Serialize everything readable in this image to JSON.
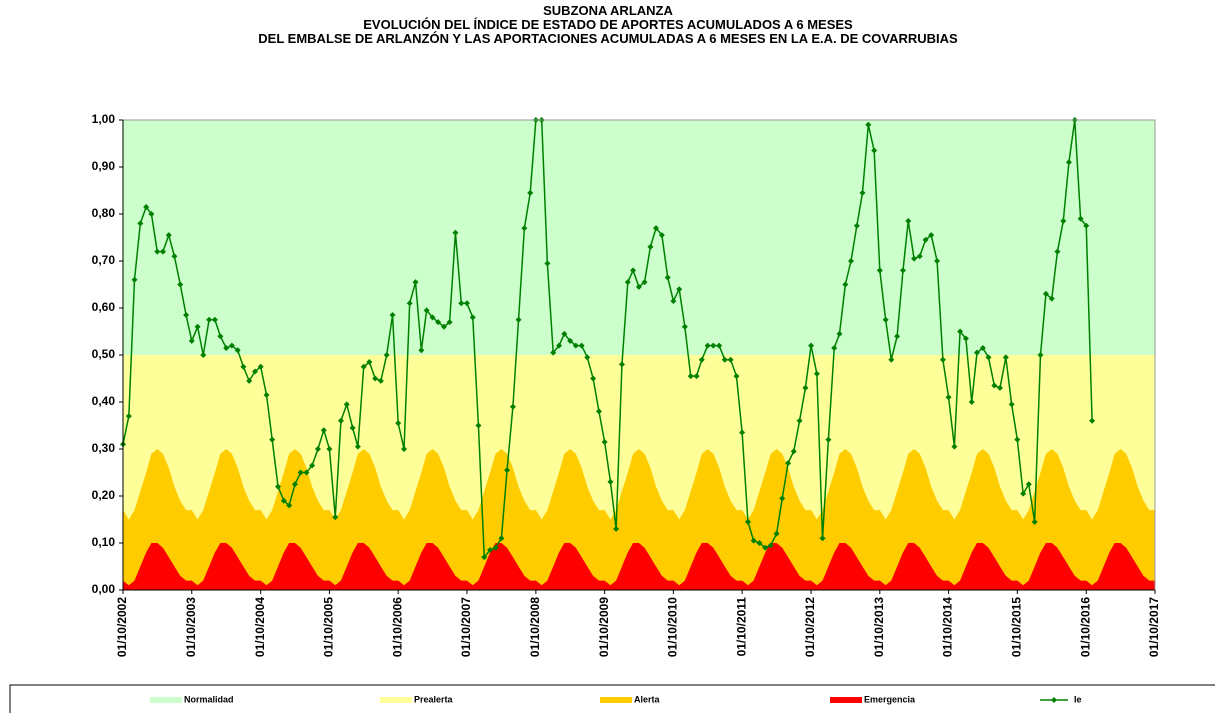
{
  "chart_data": {
    "type": "line",
    "title": [
      "SUBZONA ARLANZA",
      "EVOLUCIÓN DEL ÍNDICE DE ESTADO DE APORTES ACUMULADOS A 6 MESES",
      "DEL EMBALSE DE ARLANZÓN Y LAS APORTACIONES ACUMULADAS A 6 MESES EN LA E.A. DE COVARRUBIAS"
    ],
    "x": [
      "2002-10-01",
      "2002-11-01",
      "2002-12-01",
      "2003-01-01",
      "2003-02-01",
      "2003-03-01",
      "2003-04-01",
      "2003-05-01",
      "2003-06-01",
      "2003-07-01",
      "2003-08-01",
      "2003-09-01",
      "2003-10-01",
      "2003-11-01",
      "2003-12-01",
      "2004-01-01",
      "2004-02-01",
      "2004-03-01",
      "2004-04-01",
      "2004-05-01",
      "2004-06-01",
      "2004-07-01",
      "2004-08-01",
      "2004-09-01",
      "2004-10-01",
      "2004-11-01",
      "2004-12-01",
      "2005-01-01",
      "2005-02-01",
      "2005-03-01",
      "2005-04-01",
      "2005-05-01",
      "2005-06-01",
      "2005-07-01",
      "2005-08-01",
      "2005-09-01",
      "2005-10-01",
      "2005-11-01",
      "2005-12-01",
      "2006-01-01",
      "2006-02-01",
      "2006-03-01",
      "2006-04-01",
      "2006-05-01",
      "2006-06-01",
      "2006-07-01",
      "2006-08-01",
      "2006-09-01",
      "2006-10-01",
      "2006-11-01",
      "2006-12-01",
      "2007-01-01",
      "2007-02-01",
      "2007-03-01",
      "2007-04-01",
      "2007-05-01",
      "2007-06-01",
      "2007-07-01",
      "2007-08-01",
      "2007-09-01",
      "2007-10-01",
      "2007-11-01",
      "2007-12-01",
      "2008-01-01",
      "2008-02-01",
      "2008-03-01",
      "2008-04-01",
      "2008-05-01",
      "2008-06-01",
      "2008-07-01",
      "2008-08-01",
      "2008-09-01",
      "2008-10-01",
      "2008-11-01",
      "2008-12-01",
      "2009-01-01",
      "2009-02-01",
      "2009-03-01",
      "2009-04-01",
      "2009-05-01",
      "2009-06-01",
      "2009-07-01",
      "2009-08-01",
      "2009-09-01",
      "2009-10-01",
      "2009-11-01",
      "2009-12-01",
      "2010-01-01",
      "2010-02-01",
      "2010-03-01",
      "2010-04-01",
      "2010-05-01",
      "2010-06-01",
      "2010-07-01",
      "2010-08-01",
      "2010-09-01",
      "2010-10-01",
      "2010-11-01",
      "2010-12-01",
      "2011-01-01",
      "2011-02-01",
      "2011-03-01",
      "2011-04-01",
      "2011-05-01",
      "2011-06-01",
      "2011-07-01",
      "2011-08-01",
      "2011-09-01",
      "2011-10-01",
      "2011-11-01",
      "2011-12-01",
      "2012-01-01",
      "2012-02-01",
      "2012-03-01",
      "2012-04-01",
      "2012-05-01",
      "2012-06-01",
      "2012-07-01",
      "2012-08-01",
      "2012-09-01",
      "2012-10-01",
      "2012-11-01",
      "2012-12-01",
      "2013-01-01",
      "2013-02-01",
      "2013-03-01",
      "2013-04-01",
      "2013-05-01",
      "2013-06-01",
      "2013-07-01",
      "2013-08-01",
      "2013-09-01",
      "2013-10-01",
      "2013-11-01",
      "2013-12-01",
      "2014-01-01",
      "2014-02-01",
      "2014-03-01",
      "2014-04-01",
      "2014-05-01",
      "2014-06-01",
      "2014-07-01",
      "2014-08-01",
      "2014-09-01",
      "2014-10-01",
      "2014-11-01",
      "2014-12-01",
      "2015-01-01",
      "2015-02-01",
      "2015-03-01",
      "2015-04-01",
      "2015-05-01",
      "2015-06-01",
      "2015-07-01",
      "2015-08-01",
      "2015-09-01",
      "2015-10-01",
      "2015-11-01",
      "2015-12-01",
      "2016-01-01",
      "2016-02-01",
      "2016-03-01",
      "2016-04-01",
      "2016-05-01",
      "2016-06-01",
      "2016-07-01",
      "2016-08-01",
      "2016-09-01",
      "2016-10-01",
      "2016-11-01",
      "2016-12-01",
      "2017-01-01",
      "2017-02-01",
      "2017-03-01",
      "2017-04-01",
      "2017-05-01",
      "2017-06-01",
      "2017-07-01",
      "2017-08-01",
      "2017-09-01",
      "2017-10-01"
    ],
    "xlim": [
      "2002-10-01",
      "2017-10-01"
    ],
    "xticks": [
      {
        "value": "2002-10-01",
        "label": "01/10/2002"
      },
      {
        "value": "2003-10-01",
        "label": "01/10/2003"
      },
      {
        "value": "2004-10-01",
        "label": "01/10/2004"
      },
      {
        "value": "2005-10-01",
        "label": "01/10/2005"
      },
      {
        "value": "2006-10-01",
        "label": "01/10/2006"
      },
      {
        "value": "2007-10-01",
        "label": "01/10/2007"
      },
      {
        "value": "2008-10-01",
        "label": "01/10/2008"
      },
      {
        "value": "2009-10-01",
        "label": "01/10/2009"
      },
      {
        "value": "2010-10-01",
        "label": "01/10/2010"
      },
      {
        "value": "2011-10-01",
        "label": "01/10/2011"
      },
      {
        "value": "2012-10-01",
        "label": "01/10/2012"
      },
      {
        "value": "2013-10-01",
        "label": "01/10/2013"
      },
      {
        "value": "2014-10-01",
        "label": "01/10/2014"
      },
      {
        "value": "2015-10-01",
        "label": "01/10/2015"
      },
      {
        "value": "2016-10-01",
        "label": "01/10/2016"
      },
      {
        "value": "2017-10-01",
        "label": "01/10/2017"
      }
    ],
    "ylim": [
      0,
      1
    ],
    "yticks": [
      {
        "value": 0,
        "label": "0,00"
      },
      {
        "value": 0.1,
        "label": "0,10"
      },
      {
        "value": 0.2,
        "label": "0,20"
      },
      {
        "value": 0.3,
        "label": "0,30"
      },
      {
        "value": 0.4,
        "label": "0,40"
      },
      {
        "value": 0.5,
        "label": "0,50"
      },
      {
        "value": 0.6,
        "label": "0,60"
      },
      {
        "value": 0.7,
        "label": "0,70"
      },
      {
        "value": 0.8,
        "label": "0,80"
      },
      {
        "value": 0.9,
        "label": "0,90"
      },
      {
        "value": 1,
        "label": "1,00"
      }
    ],
    "legend": "bottom",
    "series": [
      {
        "name": "Normalidad",
        "color": "#ccffcc",
        "style": "band",
        "level": 1
      },
      {
        "name": "Prealerta",
        "color": "#ffff99",
        "style": "band",
        "level": 0.5
      },
      {
        "name": "Alerta",
        "color": "#ffcc00",
        "style": "area",
        "values": [
          0.17,
          0.15,
          0.17,
          0.21,
          0.25,
          0.29,
          0.3,
          0.29,
          0.26,
          0.22,
          0.19,
          0.17,
          0.17,
          0.15,
          0.17,
          0.21,
          0.25,
          0.29,
          0.3,
          0.29,
          0.26,
          0.22,
          0.19,
          0.17,
          0.17,
          0.15,
          0.17,
          0.21,
          0.25,
          0.29,
          0.3,
          0.29,
          0.26,
          0.22,
          0.19,
          0.17,
          0.17,
          0.15,
          0.17,
          0.21,
          0.25,
          0.29,
          0.3,
          0.29,
          0.26,
          0.22,
          0.19,
          0.17,
          0.17,
          0.15,
          0.17,
          0.21,
          0.25,
          0.29,
          0.3,
          0.29,
          0.26,
          0.22,
          0.19,
          0.17,
          0.17,
          0.15,
          0.17,
          0.21,
          0.25,
          0.29,
          0.3,
          0.29,
          0.26,
          0.22,
          0.19,
          0.17,
          0.17,
          0.15,
          0.17,
          0.21,
          0.25,
          0.29,
          0.3,
          0.29,
          0.26,
          0.22,
          0.19,
          0.17,
          0.17,
          0.15,
          0.17,
          0.21,
          0.25,
          0.29,
          0.3,
          0.29,
          0.26,
          0.22,
          0.19,
          0.17,
          0.17,
          0.15,
          0.17,
          0.21,
          0.25,
          0.29,
          0.3,
          0.29,
          0.26,
          0.22,
          0.19,
          0.17,
          0.17,
          0.15,
          0.17,
          0.21,
          0.25,
          0.29,
          0.3,
          0.29,
          0.26,
          0.22,
          0.19,
          0.17,
          0.17,
          0.15,
          0.17,
          0.21,
          0.25,
          0.29,
          0.3,
          0.29,
          0.26,
          0.22,
          0.19,
          0.17,
          0.17,
          0.15,
          0.17,
          0.21,
          0.25,
          0.29,
          0.3,
          0.29,
          0.26,
          0.22,
          0.19,
          0.17,
          0.17,
          0.15,
          0.17,
          0.21,
          0.25,
          0.29,
          0.3,
          0.29,
          0.26,
          0.22,
          0.19,
          0.17,
          0.17,
          0.15,
          0.17,
          0.21,
          0.25,
          0.29,
          0.3,
          0.29,
          0.26,
          0.22,
          0.19,
          0.17,
          0.17,
          0.15,
          0.17,
          0.21,
          0.25,
          0.29,
          0.3,
          0.29,
          0.26,
          0.22,
          0.19,
          0.17,
          0.17
        ]
      },
      {
        "name": "Emergencia",
        "color": "#ff0000",
        "style": "area",
        "values": [
          0.02,
          0.01,
          0.02,
          0.05,
          0.08,
          0.1,
          0.1,
          0.09,
          0.07,
          0.05,
          0.03,
          0.02,
          0.02,
          0.01,
          0.02,
          0.05,
          0.08,
          0.1,
          0.1,
          0.09,
          0.07,
          0.05,
          0.03,
          0.02,
          0.02,
          0.01,
          0.02,
          0.05,
          0.08,
          0.1,
          0.1,
          0.09,
          0.07,
          0.05,
          0.03,
          0.02,
          0.02,
          0.01,
          0.02,
          0.05,
          0.08,
          0.1,
          0.1,
          0.09,
          0.07,
          0.05,
          0.03,
          0.02,
          0.02,
          0.01,
          0.02,
          0.05,
          0.08,
          0.1,
          0.1,
          0.09,
          0.07,
          0.05,
          0.03,
          0.02,
          0.02,
          0.01,
          0.02,
          0.05,
          0.08,
          0.1,
          0.1,
          0.09,
          0.07,
          0.05,
          0.03,
          0.02,
          0.02,
          0.01,
          0.02,
          0.05,
          0.08,
          0.1,
          0.1,
          0.09,
          0.07,
          0.05,
          0.03,
          0.02,
          0.02,
          0.01,
          0.02,
          0.05,
          0.08,
          0.1,
          0.1,
          0.09,
          0.07,
          0.05,
          0.03,
          0.02,
          0.02,
          0.01,
          0.02,
          0.05,
          0.08,
          0.1,
          0.1,
          0.09,
          0.07,
          0.05,
          0.03,
          0.02,
          0.02,
          0.01,
          0.02,
          0.05,
          0.08,
          0.1,
          0.1,
          0.09,
          0.07,
          0.05,
          0.03,
          0.02,
          0.02,
          0.01,
          0.02,
          0.05,
          0.08,
          0.1,
          0.1,
          0.09,
          0.07,
          0.05,
          0.03,
          0.02,
          0.02,
          0.01,
          0.02,
          0.05,
          0.08,
          0.1,
          0.1,
          0.09,
          0.07,
          0.05,
          0.03,
          0.02,
          0.02,
          0.01,
          0.02,
          0.05,
          0.08,
          0.1,
          0.1,
          0.09,
          0.07,
          0.05,
          0.03,
          0.02,
          0.02,
          0.01,
          0.02,
          0.05,
          0.08,
          0.1,
          0.1,
          0.09,
          0.07,
          0.05,
          0.03,
          0.02,
          0.02,
          0.01,
          0.02,
          0.05,
          0.08,
          0.1,
          0.1,
          0.09,
          0.07,
          0.05,
          0.03,
          0.02,
          0.02
        ]
      },
      {
        "name": "Ie",
        "color": "#008000",
        "style": "line",
        "values": [
          0.31,
          0.37,
          0.66,
          0.78,
          0.815,
          0.8,
          0.72,
          0.72,
          0.755,
          0.71,
          0.65,
          0.585,
          0.53,
          0.56,
          0.5,
          0.575,
          0.575,
          0.54,
          0.515,
          0.52,
          0.51,
          0.475,
          0.445,
          0.465,
          0.475,
          0.415,
          0.32,
          0.22,
          0.19,
          0.18,
          0.225,
          0.25,
          0.25,
          0.265,
          0.3,
          0.34,
          0.3,
          0.155,
          0.36,
          0.395,
          0.345,
          0.305,
          0.475,
          0.485,
          0.45,
          0.445,
          0.5,
          0.585,
          0.355,
          0.3,
          0.61,
          0.655,
          0.51,
          0.595,
          0.58,
          0.57,
          0.56,
          0.57,
          0.76,
          0.61,
          0.61,
          0.58,
          0.35,
          0.07,
          0.085,
          0.09,
          0.11,
          0.255,
          0.39,
          0.575,
          0.77,
          0.845,
          1.0,
          1.0,
          0.695,
          0.505,
          0.52,
          0.545,
          0.53,
          0.52,
          0.52,
          0.495,
          0.45,
          0.38,
          0.315,
          0.23,
          0.13,
          0.48,
          0.655,
          0.68,
          0.645,
          0.655,
          0.73,
          0.77,
          0.755,
          0.665,
          0.615,
          0.64,
          0.56,
          0.455,
          0.455,
          0.49,
          0.52,
          0.52,
          0.52,
          0.49,
          0.49,
          0.455,
          0.335,
          0.145,
          0.105,
          0.1,
          0.09,
          0.095,
          0.12,
          0.195,
          0.27,
          0.295,
          0.36,
          0.43,
          0.52,
          0.46,
          0.11,
          0.32,
          0.515,
          0.545,
          0.65,
          0.7,
          0.775,
          0.845,
          0.99,
          0.935,
          0.68,
          0.575,
          0.49,
          0.54,
          0.68,
          0.785,
          0.705,
          0.71,
          0.745,
          0.755,
          0.7,
          0.49,
          0.41,
          0.305,
          0.55,
          0.535,
          0.4,
          0.505,
          0.515,
          0.495,
          0.435,
          0.43,
          0.495,
          0.395,
          0.32,
          0.205,
          0.225,
          0.145,
          0.5,
          0.63,
          0.62,
          0.72,
          0.785,
          0.91,
          1.0,
          0.79,
          0.775,
          0.36,
          null,
          null,
          null,
          null,
          null,
          null,
          null,
          null,
          null,
          null,
          null
        ]
      }
    ]
  }
}
